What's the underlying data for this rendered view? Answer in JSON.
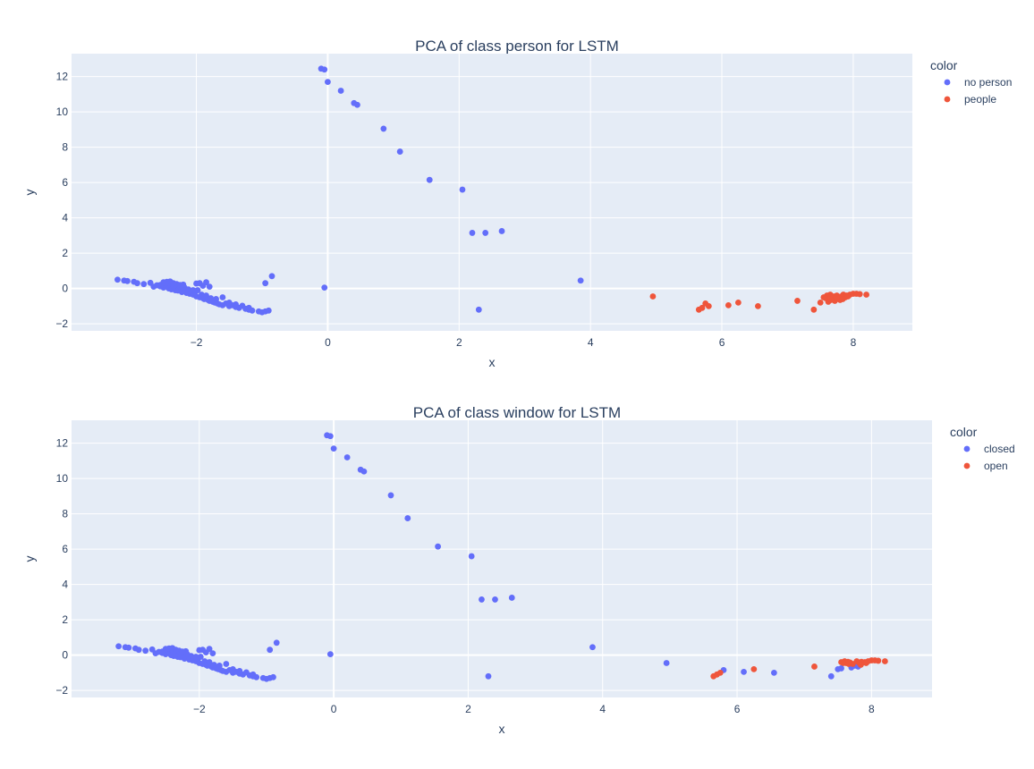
{
  "chart_data": [
    {
      "type": "scatter",
      "title": "PCA of class person  for LSTM",
      "xlabel": "x",
      "ylabel": "y",
      "xlim": [
        -3.9,
        8.9
      ],
      "ylim": [
        -2.4,
        13.3
      ],
      "xticks": [
        -2,
        0,
        2,
        4,
        6,
        8
      ],
      "yticks": [
        -2,
        0,
        2,
        4,
        6,
        8,
        10,
        12
      ],
      "xtick_labels": [
        "−2",
        "0",
        "2",
        "4",
        "6",
        "8"
      ],
      "ytick_labels": [
        "−2",
        "0",
        "2",
        "4",
        "6",
        "8",
        "10",
        "12"
      ],
      "grid": true,
      "legend_title": "color",
      "legend_position": "right",
      "series": [
        {
          "name": "no person",
          "color": "#636efa",
          "x": [
            -3.2,
            -3.1,
            -3.05,
            -2.95,
            -2.9,
            -2.8,
            -2.7,
            -2.65,
            -2.6,
            -2.55,
            -2.5,
            -2.48,
            -2.45,
            -2.42,
            -2.4,
            -2.38,
            -2.35,
            -2.32,
            -2.3,
            -2.28,
            -2.25,
            -2.22,
            -2.2,
            -2.18,
            -2.15,
            -2.12,
            -2.1,
            -2.08,
            -2.05,
            -2.02,
            -2.0,
            -1.98,
            -1.95,
            -1.92,
            -1.9,
            -1.88,
            -1.85,
            -1.82,
            -1.8,
            -1.78,
            -1.75,
            -1.72,
            -1.7,
            -1.68,
            -1.65,
            -1.6,
            -1.55,
            -1.5,
            -1.45,
            -1.4,
            -1.35,
            -1.3,
            -1.25,
            -1.2,
            -1.15,
            -2.5,
            -2.45,
            -2.4,
            -2.3,
            -2.2,
            -2.0,
            -1.9,
            -1.8,
            -1.95,
            -1.85,
            -2.55,
            -2.35,
            -2.25,
            -2.05,
            -1.6,
            -1.5,
            -1.4,
            -1.2,
            -1.05,
            -1.0,
            -0.95,
            -0.9,
            -0.85,
            -0.95,
            -0.1,
            -0.05,
            0.0,
            0.2,
            0.4,
            0.45,
            0.85,
            1.1,
            1.55,
            2.05,
            2.2,
            2.4,
            2.65,
            3.85,
            2.3,
            -0.05
          ],
          "y": [
            0.5,
            0.45,
            0.42,
            0.38,
            0.3,
            0.25,
            0.32,
            0.1,
            0.18,
            0.2,
            0.05,
            0.3,
            0.22,
            0.0,
            0.28,
            -0.05,
            0.15,
            -0.1,
            0.2,
            -0.12,
            0.1,
            -0.2,
            -0.15,
            0.05,
            -0.25,
            -0.05,
            -0.3,
            -0.22,
            -0.35,
            -0.2,
            -0.45,
            -0.1,
            -0.5,
            -0.35,
            -0.55,
            -0.6,
            -0.4,
            -0.65,
            -0.7,
            -0.55,
            -0.75,
            -0.8,
            -0.6,
            -0.85,
            -0.9,
            -0.95,
            -0.85,
            -1.0,
            -0.95,
            -1.05,
            -1.1,
            -0.98,
            -1.15,
            -1.2,
            -1.25,
            0.35,
            0.38,
            0.4,
            0.25,
            0.22,
            0.28,
            0.15,
            0.1,
            0.3,
            0.35,
            0.12,
            0.3,
            0.2,
            -0.1,
            -0.5,
            -0.8,
            -0.9,
            -1.1,
            -1.3,
            -1.35,
            -1.3,
            -1.25,
            0.7,
            0.3,
            12.45,
            12.4,
            11.7,
            11.2,
            10.5,
            10.4,
            9.05,
            7.75,
            6.15,
            5.6,
            3.15,
            3.15,
            3.25,
            0.45,
            -1.2,
            0.05
          ]
        },
        {
          "name": "people",
          "color": "#ef553b",
          "x": [
            4.95,
            5.65,
            5.7,
            5.75,
            5.8,
            6.1,
            6.25,
            6.55,
            7.15,
            7.4,
            7.5,
            7.55,
            7.6,
            7.62,
            7.65,
            7.68,
            7.7,
            7.72,
            7.75,
            7.78,
            7.8,
            7.82,
            7.85,
            7.88,
            7.9,
            7.95,
            8.0,
            8.05,
            8.1,
            8.2,
            7.58,
            7.66,
            7.74,
            7.84,
            7.92
          ],
          "y": [
            -0.45,
            -1.2,
            -1.1,
            -0.85,
            -1.0,
            -0.95,
            -0.8,
            -1.0,
            -0.7,
            -1.2,
            -0.8,
            -0.5,
            -0.4,
            -0.75,
            -0.35,
            -0.6,
            -0.45,
            -0.7,
            -0.4,
            -0.55,
            -0.65,
            -0.45,
            -0.35,
            -0.5,
            -0.4,
            -0.35,
            -0.3,
            -0.3,
            -0.32,
            -0.35,
            -0.55,
            -0.65,
            -0.5,
            -0.6,
            -0.45
          ]
        }
      ]
    },
    {
      "type": "scatter",
      "title": "PCA of class window  for LSTM",
      "xlabel": "x",
      "ylabel": "y",
      "xlim": [
        -3.9,
        8.9
      ],
      "ylim": [
        -2.4,
        13.3
      ],
      "xticks": [
        -2,
        0,
        2,
        4,
        6,
        8
      ],
      "yticks": [
        -2,
        0,
        2,
        4,
        6,
        8,
        10,
        12
      ],
      "xtick_labels": [
        "−2",
        "0",
        "2",
        "4",
        "6",
        "8"
      ],
      "ytick_labels": [
        "−2",
        "0",
        "2",
        "4",
        "6",
        "8",
        "10",
        "12"
      ],
      "grid": true,
      "legend_title": "color",
      "legend_position": "right",
      "series": [
        {
          "name": "closed",
          "color": "#636efa",
          "x": [
            -3.2,
            -3.1,
            -3.05,
            -2.95,
            -2.9,
            -2.8,
            -2.7,
            -2.65,
            -2.6,
            -2.55,
            -2.5,
            -2.48,
            -2.45,
            -2.42,
            -2.4,
            -2.38,
            -2.35,
            -2.32,
            -2.3,
            -2.28,
            -2.25,
            -2.22,
            -2.2,
            -2.18,
            -2.15,
            -2.12,
            -2.1,
            -2.08,
            -2.05,
            -2.02,
            -2.0,
            -1.98,
            -1.95,
            -1.92,
            -1.9,
            -1.88,
            -1.85,
            -1.82,
            -1.8,
            -1.78,
            -1.75,
            -1.72,
            -1.7,
            -1.68,
            -1.65,
            -1.6,
            -1.55,
            -1.5,
            -1.45,
            -1.4,
            -1.35,
            -1.3,
            -1.25,
            -1.2,
            -1.15,
            -2.5,
            -2.45,
            -2.4,
            -2.3,
            -2.2,
            -2.0,
            -1.9,
            -1.8,
            -1.95,
            -1.85,
            -2.55,
            -2.35,
            -2.25,
            -2.05,
            -1.6,
            -1.5,
            -1.4,
            -1.2,
            -1.05,
            -1.0,
            -0.95,
            -0.9,
            -0.85,
            -0.95,
            -0.1,
            -0.05,
            0.0,
            0.2,
            0.4,
            0.45,
            0.85,
            1.1,
            1.55,
            2.05,
            2.2,
            2.4,
            2.65,
            3.85,
            2.3,
            -0.05,
            4.95,
            5.8,
            6.1,
            6.55,
            7.4,
            7.5,
            7.55,
            7.7,
            7.75,
            7.8
          ],
          "y": [
            0.5,
            0.45,
            0.42,
            0.38,
            0.3,
            0.25,
            0.32,
            0.1,
            0.18,
            0.2,
            0.05,
            0.3,
            0.22,
            0.0,
            0.28,
            -0.05,
            0.15,
            -0.1,
            0.2,
            -0.12,
            0.1,
            -0.2,
            -0.15,
            0.05,
            -0.25,
            -0.05,
            -0.3,
            -0.22,
            -0.35,
            -0.2,
            -0.45,
            -0.1,
            -0.5,
            -0.35,
            -0.55,
            -0.6,
            -0.4,
            -0.65,
            -0.7,
            -0.55,
            -0.75,
            -0.8,
            -0.6,
            -0.85,
            -0.9,
            -0.95,
            -0.85,
            -1.0,
            -0.95,
            -1.05,
            -1.1,
            -0.98,
            -1.15,
            -1.2,
            -1.25,
            0.35,
            0.38,
            0.4,
            0.25,
            0.22,
            0.28,
            0.15,
            0.1,
            0.3,
            0.35,
            0.12,
            0.3,
            0.2,
            -0.1,
            -0.5,
            -0.8,
            -0.9,
            -1.1,
            -1.3,
            -1.35,
            -1.3,
            -1.25,
            0.7,
            0.3,
            12.45,
            12.4,
            11.7,
            11.2,
            10.5,
            10.4,
            9.05,
            7.75,
            6.15,
            5.6,
            3.15,
            3.15,
            3.25,
            0.45,
            -1.2,
            0.05,
            -0.45,
            -0.85,
            -0.95,
            -1.0,
            -1.2,
            -0.8,
            -0.75,
            -0.7,
            -0.6,
            -0.65
          ]
        },
        {
          "name": "open",
          "color": "#ef553b",
          "x": [
            5.65,
            5.7,
            5.75,
            6.25,
            7.15,
            7.55,
            7.6,
            7.62,
            7.65,
            7.68,
            7.72,
            7.78,
            7.82,
            7.85,
            7.88,
            7.9,
            7.95,
            8.0,
            8.05,
            8.1,
            8.2,
            7.58,
            7.66,
            7.84,
            7.92
          ],
          "y": [
            -1.2,
            -1.1,
            -1.0,
            -0.8,
            -0.65,
            -0.4,
            -0.35,
            -0.45,
            -0.38,
            -0.42,
            -0.5,
            -0.35,
            -0.45,
            -0.38,
            -0.42,
            -0.4,
            -0.35,
            -0.3,
            -0.3,
            -0.32,
            -0.35,
            -0.45,
            -0.5,
            -0.55,
            -0.45
          ]
        }
      ]
    }
  ]
}
